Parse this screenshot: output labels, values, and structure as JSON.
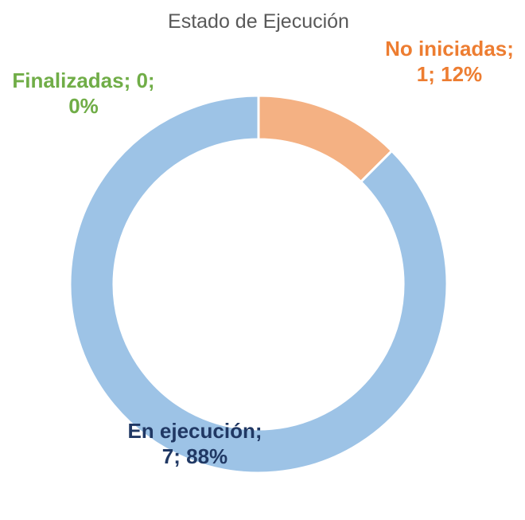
{
  "chart_data": {
    "type": "donut",
    "title": "Estado de Ejecución",
    "values": [
      1,
      7,
      0
    ],
    "value_labels": [
      "No iniciadas; 1; 12%",
      "En ejecución; 7; 88%",
      "Finalizadas; 0; 0%"
    ],
    "colors": [
      "#f4b183",
      "#9dc3e6",
      "#a9d18e"
    ],
    "label_colors": [
      "#ed7d31",
      "#203864",
      "#70ad47"
    ]
  }
}
